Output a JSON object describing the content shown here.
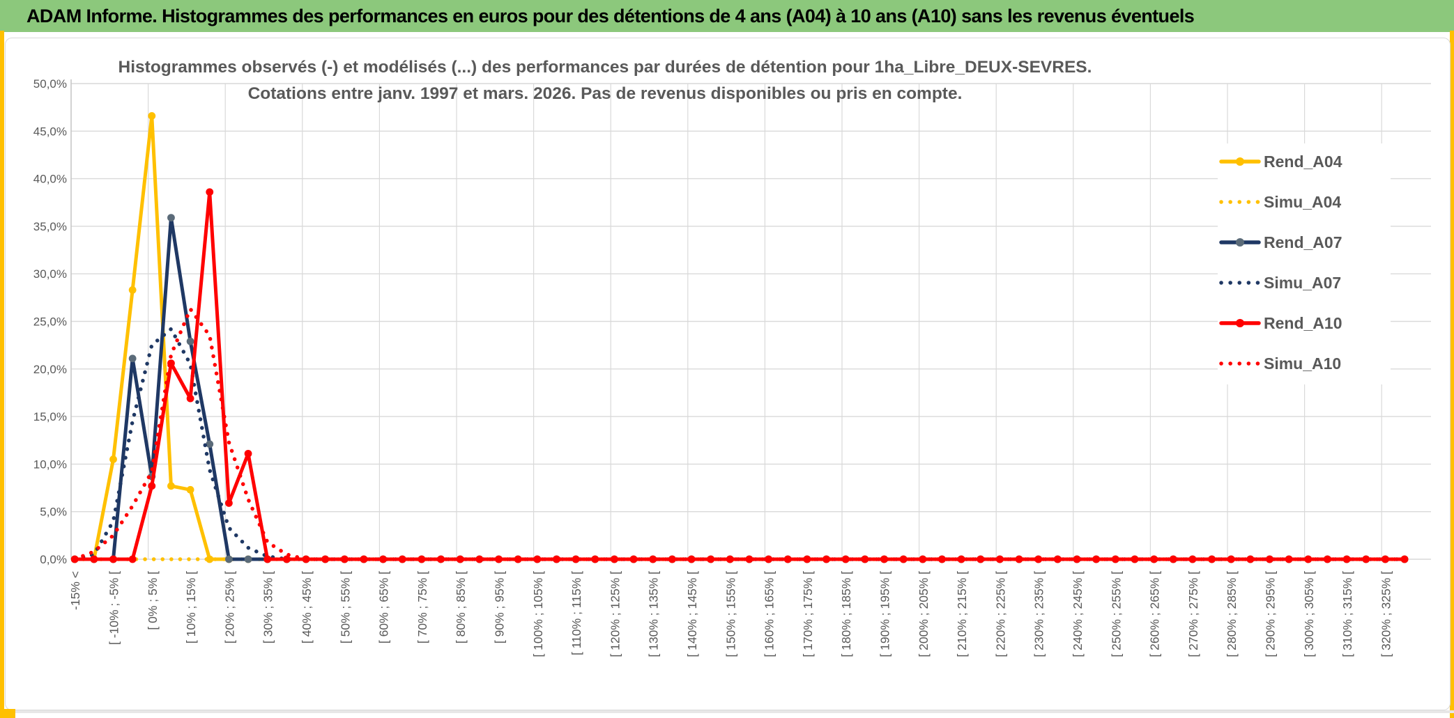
{
  "page": {
    "header_title": "ADAM Informe. Histogrammes des performances en euros pour des détentions de 4 ans (A04) à 10 ans (A10) sans les revenus éventuels",
    "header_bg": "#8CC87C",
    "frame_color": "#FFC000",
    "grid_color": "#D9D9D9",
    "text_gray": "#595959"
  },
  "chart_data": {
    "type": "line",
    "title": "Histogrammes observés (-) et modélisés (...) des performances par durées de détention pour 1ha_Libre_DEUX-SEVRES.",
    "subtitle": "Cotations entre janv. 1997 et mars. 2026. Pas de revenus disponibles ou pris en compte.",
    "ylim": [
      0,
      50
    ],
    "y_tick_labels": [
      "0,0%",
      "5,0%",
      "10,0%",
      "15,0%",
      "20,0%",
      "25,0%",
      "30,0%",
      "35,0%",
      "40,0%",
      "45,0%",
      "50,0%"
    ],
    "n_bins": 70,
    "x_tick_bin_step": 2,
    "x_tick_labels": [
      "-15% <",
      "[ -10% ; -5% [",
      "[ 0% ; 5% [",
      "[ 10% ; 15% [",
      "[ 20% ; 25% [",
      "[ 30% ; 35% [",
      "[ 40% ; 45% [",
      "[ 50% ; 55% [",
      "[ 60% ; 65% [",
      "[ 70% ; 75% [",
      "[ 80% ; 85% [",
      "[ 90% ; 95% [",
      "[ 100% ; 105% [",
      "[ 110% ; 115% [",
      "[ 120% ; 125% [",
      "[ 130% ; 135% [",
      "[ 140% ; 145% [",
      "[ 150% ; 155% [",
      "[ 160% ; 165% [",
      "[ 170% ; 175% [",
      "[ 180% ; 185% [",
      "[ 190% ; 195% [",
      "[ 200% ; 205% [",
      "[ 210% ; 215% [",
      "[ 220% ; 225% [",
      "[ 230% ; 235% [",
      "[ 240% ; 245% [",
      "[ 250% ; 255% [",
      "[ 260% ; 265% [",
      "[ 270% ; 275% [",
      "[ 280% ; 285% [",
      "[ 290% ; 295% [",
      "[ 300% ; 305% [",
      "[ 310% ; 315% [",
      "[ 320% ; 325% ["
    ],
    "series": [
      {
        "name": "Rend_A04",
        "color": "#FFC000",
        "marker_color": "#FFC000",
        "style": "solid",
        "values": [
          0,
          0,
          10.5,
          28.3,
          46.6,
          7.7,
          7.3,
          0,
          0,
          0,
          0,
          0,
          0,
          0
        ],
        "pad_with_zeros_to_n_bins": true
      },
      {
        "name": "Simu_A04",
        "color": "#FFC000",
        "style": "dotted",
        "values": [
          0,
          0,
          0,
          0,
          0,
          0,
          0,
          0,
          0,
          0,
          0,
          0,
          0,
          0
        ],
        "pad_with_zeros_to_n_bins": true
      },
      {
        "name": "Rend_A07",
        "color": "#1F3864",
        "marker_color": "#5B6B79",
        "style": "solid",
        "values": [
          0,
          0,
          0,
          21.1,
          8.7,
          35.9,
          22.9,
          12.1,
          0,
          0,
          0,
          0,
          0,
          0
        ],
        "pad_with_zeros_to_n_bins": true
      },
      {
        "name": "Simu_A07",
        "color": "#1F3864",
        "style": "dotted",
        "values": [
          0,
          0.5,
          4,
          14.5,
          22.5,
          24.2,
          20.5,
          9.4,
          3.3,
          1.2,
          0.3,
          0,
          0,
          0
        ],
        "pad_with_zeros_to_n_bins": true
      },
      {
        "name": "Rend_A10",
        "color": "#FF0000",
        "marker_color": "#FF0000",
        "style": "solid",
        "values": [
          0,
          0,
          0,
          0,
          7.7,
          20.6,
          16.9,
          38.6,
          5.9,
          11.1,
          0,
          0,
          0,
          0
        ],
        "pad_with_zeros_to_n_bins": true
      },
      {
        "name": "Simu_A10",
        "color": "#FF0000",
        "style": "dotted",
        "values": [
          0,
          0.8,
          2.5,
          5.6,
          9.2,
          21.5,
          26.3,
          23.5,
          12.3,
          6.3,
          1.8,
          0.5,
          0,
          0
        ],
        "pad_with_zeros_to_n_bins": true
      }
    ],
    "legend_position": "right",
    "grid": true
  }
}
